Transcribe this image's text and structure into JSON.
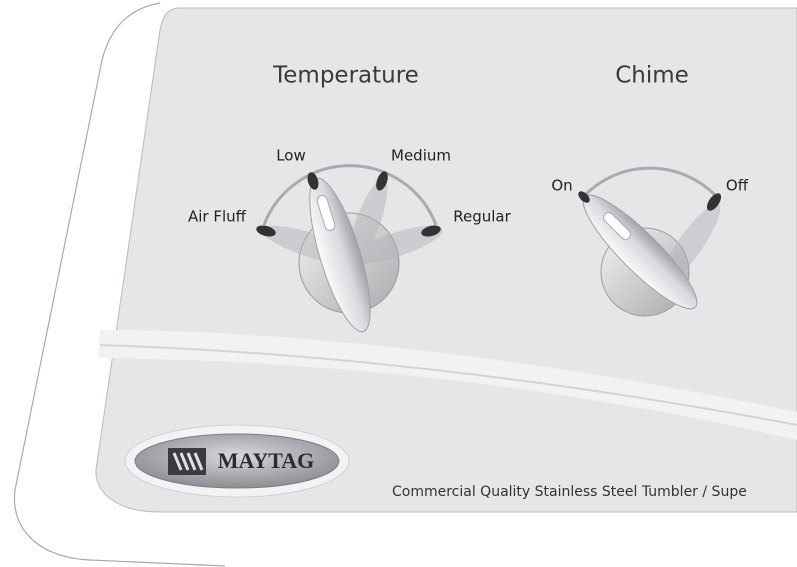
{
  "panel": {
    "controls": [
      {
        "title": "Temperature",
        "options": [
          "Air Fluff",
          "Low",
          "Medium",
          "Regular"
        ]
      },
      {
        "title": "Chime",
        "options": [
          "On",
          "Off"
        ]
      }
    ],
    "brand": "MAYTAG",
    "tagline": "Commercial Quality Stainless Steel Tumbler / Supe"
  }
}
